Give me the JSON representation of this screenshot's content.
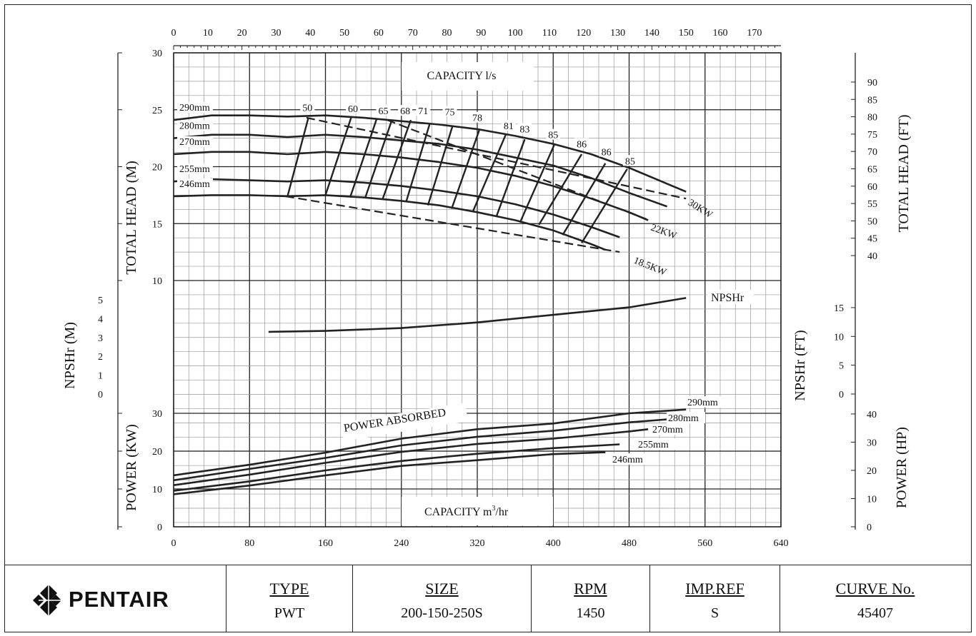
{
  "chart_data": {
    "type": "line",
    "x_top": {
      "label": "CAPACITY l/s",
      "ticks": [
        "0",
        "10",
        "20",
        "30",
        "40",
        "50",
        "60",
        "70",
        "80",
        "90",
        "100",
        "110",
        "120",
        "130",
        "140",
        "150",
        "160",
        "170"
      ]
    },
    "x_bottom": {
      "label": "CAPACITY m³/hr",
      "label_main": "CAPACITY m",
      "label_sup": "3",
      "label_tail": "/hr",
      "ticks": [
        "0",
        "80",
        "160",
        "240",
        "320",
        "400",
        "480",
        "560",
        "640"
      ],
      "range": [
        0,
        640
      ]
    },
    "head": {
      "ylabel_left": "TOTAL HEAD (M)",
      "ylabel_right": "TOTAL HEAD (FT)",
      "ylim": [
        10,
        30
      ],
      "left_ticks": [
        "10",
        "15",
        "20",
        "25",
        "30"
      ],
      "right_ticks": [
        "40",
        "45",
        "50",
        "55",
        "60",
        "65",
        "70",
        "75",
        "80",
        "85",
        "90"
      ],
      "series": [
        {
          "name": "290mm",
          "x": [
            0,
            40,
            80,
            120,
            160,
            200,
            240,
            280,
            320,
            360,
            400,
            440,
            480,
            520,
            540
          ],
          "y": [
            24.1,
            24.5,
            24.5,
            24.4,
            24.5,
            24.3,
            24.0,
            23.7,
            23.3,
            22.7,
            22.0,
            21.1,
            19.9,
            18.5,
            17.8
          ]
        },
        {
          "name": "280mm",
          "x": [
            0,
            40,
            80,
            120,
            160,
            200,
            240,
            280,
            320,
            360,
            400,
            440,
            480,
            520
          ],
          "y": [
            22.5,
            22.8,
            22.8,
            22.6,
            22.8,
            22.6,
            22.3,
            22.0,
            21.5,
            20.8,
            20.1,
            19.0,
            17.7,
            16.5
          ]
        },
        {
          "name": "270mm",
          "x": [
            0,
            40,
            80,
            120,
            160,
            200,
            240,
            280,
            320,
            360,
            400,
            440,
            480,
            500
          ],
          "y": [
            21.1,
            21.3,
            21.3,
            21.1,
            21.3,
            21.1,
            20.8,
            20.4,
            19.9,
            19.2,
            18.3,
            17.2,
            16.0,
            15.3
          ]
        },
        {
          "name": "255mm",
          "x": [
            0,
            40,
            80,
            120,
            160,
            200,
            240,
            280,
            320,
            360,
            400,
            440,
            470
          ],
          "y": [
            18.7,
            18.9,
            18.8,
            18.7,
            18.8,
            18.6,
            18.3,
            17.9,
            17.4,
            16.7,
            15.8,
            14.7,
            13.8
          ]
        },
        {
          "name": "246mm",
          "x": [
            0,
            40,
            80,
            120,
            160,
            200,
            240,
            280,
            320,
            360,
            400,
            440,
            455
          ],
          "y": [
            17.4,
            17.5,
            17.5,
            17.4,
            17.5,
            17.3,
            17.0,
            16.6,
            16.0,
            15.3,
            14.4,
            13.2,
            12.7
          ]
        }
      ],
      "efficiency_labels": [
        {
          "text": "50",
          "x": 141,
          "y": 24.9
        },
        {
          "text": "60",
          "x": 189,
          "y": 24.8
        },
        {
          "text": "65",
          "x": 221,
          "y": 24.6
        },
        {
          "text": "68",
          "x": 244,
          "y": 24.6
        },
        {
          "text": "71",
          "x": 263,
          "y": 24.6
        },
        {
          "text": "75",
          "x": 291,
          "y": 24.5
        },
        {
          "text": "78",
          "x": 320,
          "y": 24.0
        },
        {
          "text": "81",
          "x": 353,
          "y": 23.3
        },
        {
          "text": "83",
          "x": 370,
          "y": 23.0
        },
        {
          "text": "85",
          "x": 400,
          "y": 22.5
        },
        {
          "text": "86",
          "x": 430,
          "y": 21.7
        },
        {
          "text": "86",
          "x": 456,
          "y": 21.0
        },
        {
          "text": "85",
          "x": 481,
          "y": 20.2
        }
      ],
      "efficiency_lines": [
        {
          "x": [
            120,
            142
          ],
          "y": [
            17.4,
            24.3
          ]
        },
        {
          "x": [
            160,
            187
          ],
          "y": [
            17.5,
            24.3
          ]
        },
        {
          "x": [
            186,
            214
          ],
          "y": [
            17.3,
            24.2
          ]
        },
        {
          "x": [
            202,
            230
          ],
          "y": [
            17.3,
            24.1
          ]
        },
        {
          "x": [
            220,
            250
          ],
          "y": [
            17.1,
            24.1
          ]
        },
        {
          "x": [
            245,
            270
          ],
          "y": [
            16.9,
            23.8
          ]
        },
        {
          "x": [
            268,
            294
          ],
          "y": [
            16.6,
            23.6
          ]
        },
        {
          "x": [
            293,
            322
          ],
          "y": [
            16.3,
            23.2
          ]
        },
        {
          "x": [
            315,
            350
          ],
          "y": [
            16.0,
            22.8
          ]
        },
        {
          "x": [
            340,
            370
          ],
          "y": [
            15.6,
            22.4
          ]
        },
        {
          "x": [
            365,
            401
          ],
          "y": [
            15.1,
            21.9
          ]
        },
        {
          "x": [
            385,
            430
          ],
          "y": [
            14.9,
            21.1
          ]
        },
        {
          "x": [
            410,
            455
          ],
          "y": [
            14.0,
            20.3
          ]
        },
        {
          "x": [
            430,
            478
          ],
          "y": [
            13.3,
            19.8
          ]
        }
      ],
      "power_lines": [
        {
          "name": "30KW",
          "x": [
            140,
            540
          ],
          "y": [
            24.3,
            17.2
          ]
        },
        {
          "name": "22KW",
          "x": [
            225,
            498
          ],
          "y": [
            24.1,
            15.4
          ]
        },
        {
          "name": "18.5KW",
          "x": [
            118,
            470
          ],
          "y": [
            17.4,
            12.5
          ]
        }
      ]
    },
    "npshr": {
      "ylabel_left": "NPSHr (M)",
      "ylabel_right": "NPSHr (FT)",
      "left_ticks": [
        "0",
        "1",
        "2",
        "3",
        "4",
        "5"
      ],
      "right_ticks": [
        "0",
        "5",
        "10",
        "15"
      ],
      "series": [
        {
          "name": "NPSHr",
          "x": [
            100,
            160,
            240,
            320,
            400,
            480,
            540
          ],
          "y": [
            3.3,
            3.35,
            3.5,
            3.8,
            4.2,
            4.6,
            5.1
          ]
        }
      ]
    },
    "power": {
      "ylabel_left": "POWER (KW)",
      "ylabel_right": "POWER (HP)",
      "title": "POWER ABSORBED",
      "ylim": [
        0,
        30
      ],
      "left_ticks": [
        "0",
        "10",
        "20",
        "30"
      ],
      "right_ticks": [
        "0",
        "10",
        "20",
        "30",
        "40"
      ],
      "series": [
        {
          "name": "290mm",
          "x": [
            0,
            80,
            160,
            240,
            320,
            400,
            480,
            540
          ],
          "y": [
            13.6,
            16.4,
            19.6,
            23.3,
            25.8,
            27.3,
            30.0,
            31.0
          ]
        },
        {
          "name": "280mm",
          "x": [
            0,
            80,
            160,
            240,
            320,
            400,
            480,
            520
          ],
          "y": [
            12.3,
            15.3,
            18.2,
            21.5,
            23.8,
            25.4,
            27.6,
            28.4
          ]
        },
        {
          "name": "270mm",
          "x": [
            0,
            80,
            160,
            240,
            320,
            400,
            480,
            500
          ],
          "y": [
            11.0,
            13.8,
            16.9,
            19.8,
            21.9,
            23.3,
            25.2,
            25.8
          ]
        },
        {
          "name": "255mm",
          "x": [
            0,
            80,
            160,
            240,
            320,
            400,
            470
          ],
          "y": [
            9.5,
            12.0,
            14.9,
            17.4,
            19.3,
            20.8,
            21.8
          ]
        },
        {
          "name": "246mm",
          "x": [
            0,
            80,
            160,
            240,
            320,
            400,
            455
          ],
          "y": [
            8.6,
            10.9,
            13.6,
            16.1,
            17.6,
            19.2,
            19.7
          ]
        }
      ]
    }
  },
  "titleblock": {
    "logo": "PENTAIR",
    "type_label": "TYPE",
    "type_value": "PWT",
    "size_label": "SIZE",
    "size_value": "200-150-250S",
    "rpm_label": "RPM",
    "rpm_value": "1450",
    "impref_label": "IMP.REF",
    "impref_value": "S",
    "curve_label": "CURVE No.",
    "curve_value": "45407"
  }
}
